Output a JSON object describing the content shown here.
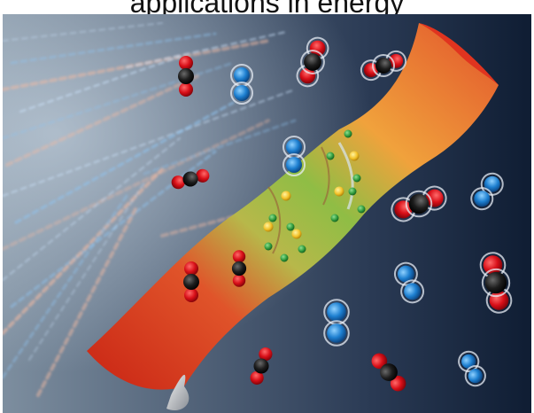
{
  "caption": {
    "text": "applications in energy"
  },
  "scene": {
    "description_icon": "carbon-capture-membrane-illustration",
    "background_color": "#0f1d33",
    "streak_colors": [
      "#cfe6ff",
      "#8fc2ee",
      "#f1b9a2"
    ],
    "membrane_colors": [
      "#d2341e",
      "#e8742d",
      "#f3a03f",
      "#a8c13e",
      "#5fa83c"
    ],
    "atom_colors": {
      "oxygen": "#e0101a",
      "carbon": "#1b1b1b",
      "nitrogen": "#1f7fd0",
      "pore_green": "#2f9a3c",
      "pore_yellow": "#f2c128"
    },
    "molecule_types": [
      "CO2",
      "N2",
      "CO2-inside-pore"
    ]
  }
}
